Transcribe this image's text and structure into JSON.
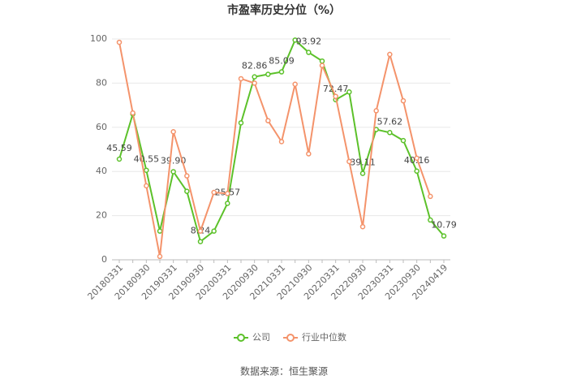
{
  "chart_data": {
    "type": "line",
    "title": "市盈率历史分位（%）",
    "categories": [
      "20180331",
      null,
      "20180930",
      null,
      "20190331",
      null,
      "20190930",
      null,
      "20200331",
      null,
      "20200930",
      null,
      "20210331",
      null,
      "20210930",
      null,
      "20220331",
      null,
      "20220930",
      null,
      "20230331",
      null,
      "20230930",
      null,
      "20240419"
    ],
    "series": [
      {
        "name": "公司",
        "color": "#5cc12a",
        "values": [
          45.59,
          66,
          40.55,
          13,
          39.9,
          31,
          8.24,
          13,
          25.57,
          62,
          82.86,
          84,
          85.09,
          99.5,
          93.92,
          90,
          72.47,
          76,
          39.11,
          59,
          57.62,
          54,
          40.16,
          18,
          10.79
        ],
        "value_labels": [
          "45.59",
          null,
          "40.55",
          null,
          "39.90",
          null,
          "8.24",
          null,
          "25.57",
          null,
          "82.86",
          null,
          "85.09",
          null,
          "93.92",
          null,
          "72.47",
          null,
          "39.11",
          null,
          "57.62",
          null,
          "40.16",
          null,
          "10.79"
        ]
      },
      {
        "name": "行业中位数",
        "color": "#f4936b",
        "values": [
          98.5,
          66.5,
          33.5,
          1.5,
          58,
          38,
          13,
          30.5,
          30,
          82,
          80,
          63,
          53.5,
          79.5,
          48,
          88,
          74,
          44.5,
          15,
          67.5,
          93,
          72,
          46,
          28.7,
          null
        ]
      }
    ],
    "ylim": [
      0,
      100
    ],
    "yticks": [
      0,
      20,
      40,
      60,
      80,
      100
    ],
    "grid": true,
    "legend": "bottom",
    "source": "数据来源：恒生聚源"
  }
}
